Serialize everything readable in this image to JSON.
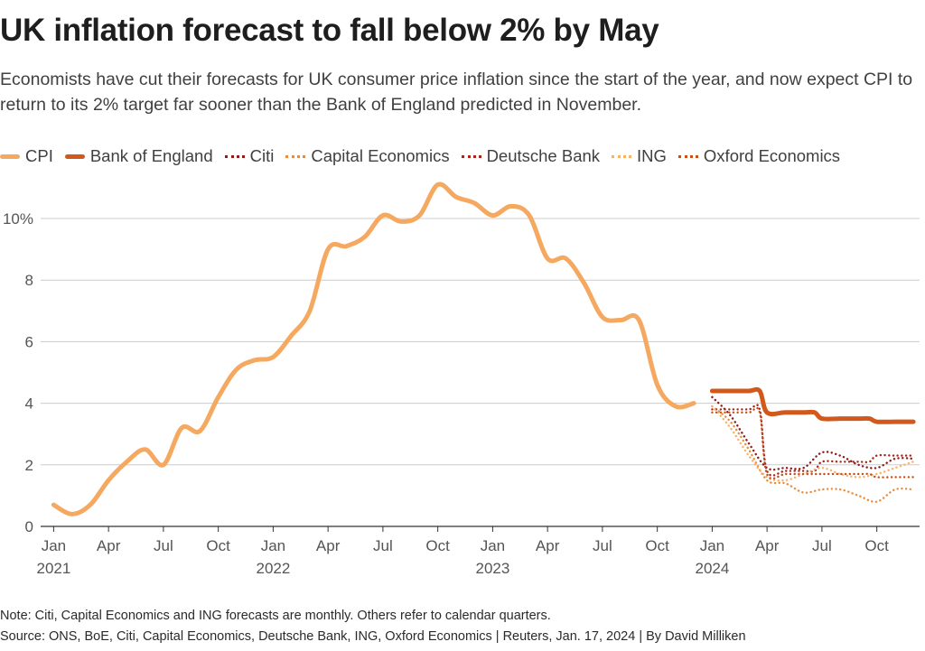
{
  "header": {
    "title": "UK inflation forecast to fall below 2% by May",
    "subtitle": "Economists have cut their forecasts for UK consumer price inflation since the start of the year, and now expect CPI to return to its 2% target far sooner than the Bank of England predicted in November."
  },
  "footer": {
    "note": "Note: Citi, Capital Economics and ING forecasts are monthly. Others refer to calendar quarters.",
    "source": "Source: ONS, BoE, Citi, Capital Economics, Deutsche Bank, ING, Oxford Economics | Reuters, Jan. 17, 2024 | By David Milliken"
  },
  "chart_data": {
    "type": "line",
    "title": "UK inflation forecast to fall below 2% by May",
    "xlabel": "",
    "ylabel": "",
    "x_range": [
      "Jan 2021",
      "Dec 2024"
    ],
    "ylim": [
      0,
      11
    ],
    "grid": true,
    "legend_position": "top",
    "y_ticks": [
      0,
      2,
      4,
      6,
      8,
      10
    ],
    "y_tick_labels": [
      "0",
      "2",
      "4",
      "6",
      "8",
      "10%"
    ],
    "x_ticks": [
      {
        "index": 0,
        "label": "Jan",
        "year": "2021"
      },
      {
        "index": 3,
        "label": "Apr",
        "year": ""
      },
      {
        "index": 6,
        "label": "Jul",
        "year": ""
      },
      {
        "index": 9,
        "label": "Oct",
        "year": ""
      },
      {
        "index": 12,
        "label": "Jan",
        "year": "2022"
      },
      {
        "index": 15,
        "label": "Apr",
        "year": ""
      },
      {
        "index": 18,
        "label": "Jul",
        "year": ""
      },
      {
        "index": 21,
        "label": "Oct",
        "year": ""
      },
      {
        "index": 24,
        "label": "Jan",
        "year": "2023"
      },
      {
        "index": 27,
        "label": "Apr",
        "year": ""
      },
      {
        "index": 30,
        "label": "Jul",
        "year": ""
      },
      {
        "index": 33,
        "label": "Oct",
        "year": ""
      },
      {
        "index": 36,
        "label": "Jan",
        "year": "2024"
      },
      {
        "index": 39,
        "label": "Apr",
        "year": ""
      },
      {
        "index": 42,
        "label": "Jul",
        "year": ""
      },
      {
        "index": 45,
        "label": "Oct",
        "year": ""
      }
    ],
    "series": [
      {
        "name": "CPI",
        "color": "#f5a860",
        "style": "solid",
        "weight": "thick",
        "x": [
          0,
          1,
          2,
          3,
          4,
          5,
          6,
          7,
          8,
          9,
          10,
          11,
          12,
          13,
          14,
          15,
          16,
          17,
          18,
          19,
          20,
          21,
          22,
          23,
          24,
          25,
          26,
          27,
          28,
          29,
          30,
          31,
          32,
          33,
          34,
          35
        ],
        "values": [
          0.7,
          0.4,
          0.7,
          1.5,
          2.1,
          2.5,
          2.0,
          3.2,
          3.1,
          4.2,
          5.1,
          5.4,
          5.5,
          6.2,
          7.0,
          9.0,
          9.1,
          9.4,
          10.1,
          9.9,
          10.1,
          11.1,
          10.7,
          10.5,
          10.1,
          10.4,
          10.1,
          8.7,
          8.7,
          7.9,
          6.8,
          6.7,
          6.7,
          4.6,
          3.9,
          4.0
        ]
      },
      {
        "name": "Bank of England",
        "color": "#d2591c",
        "style": "solid",
        "weight": "thick",
        "x": [
          36,
          37,
          38,
          38.6,
          39,
          40,
          41,
          41.6,
          42,
          43,
          44,
          44.6,
          45,
          46,
          47
        ],
        "values": [
          4.4,
          4.4,
          4.4,
          4.4,
          3.7,
          3.7,
          3.7,
          3.7,
          3.5,
          3.5,
          3.5,
          3.5,
          3.4,
          3.4,
          3.4
        ]
      },
      {
        "name": "Citi",
        "color": "#8c1d1d",
        "style": "dotted",
        "weight": "thin",
        "x": [
          36,
          37,
          38,
          39,
          40,
          41,
          42,
          43,
          44,
          45,
          46,
          47
        ],
        "values": [
          4.2,
          3.6,
          2.7,
          1.9,
          1.9,
          1.9,
          2.4,
          2.3,
          2.0,
          1.9,
          2.2,
          2.2
        ]
      },
      {
        "name": "Capital Economics",
        "color": "#ea8c3c",
        "style": "dotted",
        "weight": "thin",
        "x": [
          36,
          37,
          38,
          39,
          40,
          41,
          42,
          43,
          44,
          45,
          46,
          47
        ],
        "values": [
          3.9,
          3.4,
          2.5,
          1.5,
          1.4,
          1.1,
          1.2,
          1.2,
          1.0,
          0.8,
          1.2,
          1.2
        ]
      },
      {
        "name": "Deutsche Bank",
        "color": "#a5261c",
        "style": "dotted",
        "weight": "thin",
        "x": [
          36,
          37,
          38,
          38.6,
          39,
          40,
          41,
          41.6,
          42,
          43,
          44,
          44.6,
          45,
          46,
          47
        ],
        "values": [
          3.8,
          3.8,
          3.8,
          3.8,
          1.8,
          1.8,
          1.8,
          1.8,
          2.1,
          2.1,
          2.1,
          2.1,
          2.3,
          2.3,
          2.3
        ]
      },
      {
        "name": "ING",
        "color": "#f5b26b",
        "style": "dotted",
        "weight": "thin",
        "x": [
          36,
          37,
          38,
          39,
          40,
          41,
          42,
          43,
          44,
          45,
          46,
          47
        ],
        "values": [
          3.9,
          3.2,
          2.3,
          1.6,
          1.5,
          1.7,
          1.9,
          1.7,
          1.6,
          1.7,
          1.9,
          2.1
        ]
      },
      {
        "name": "Oxford Economics",
        "color": "#c4501a",
        "style": "dotted",
        "weight": "thin",
        "x": [
          36,
          37,
          38,
          38.6,
          39,
          40,
          41,
          41.6,
          42,
          43,
          44,
          44.6,
          45,
          46,
          47
        ],
        "values": [
          3.7,
          3.7,
          3.7,
          3.7,
          1.7,
          1.7,
          1.7,
          1.7,
          1.7,
          1.7,
          1.7,
          1.7,
          1.6,
          1.6,
          1.6
        ]
      }
    ]
  }
}
